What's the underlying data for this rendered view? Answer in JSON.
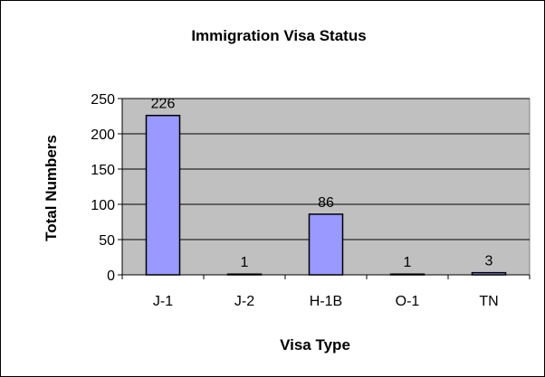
{
  "chart_data": {
    "type": "bar",
    "title": "Immigration Visa Status",
    "xlabel": "Visa Type",
    "ylabel": "Total Numbers",
    "categories": [
      "J-1",
      "J-2",
      "H-1B",
      "O-1",
      "TN"
    ],
    "values": [
      226,
      1,
      86,
      1,
      3
    ],
    "data_labels": [
      "226",
      "1",
      "86",
      "1",
      "3"
    ],
    "ylim": [
      0,
      250
    ],
    "yticks": [
      "0",
      "50",
      "100",
      "150",
      "200",
      "250"
    ],
    "grid": true,
    "legend": "none",
    "colors": {
      "plot_background": "#c0c0c0",
      "bar_fill": "#9999ff",
      "bar_stroke": "#000000"
    }
  }
}
